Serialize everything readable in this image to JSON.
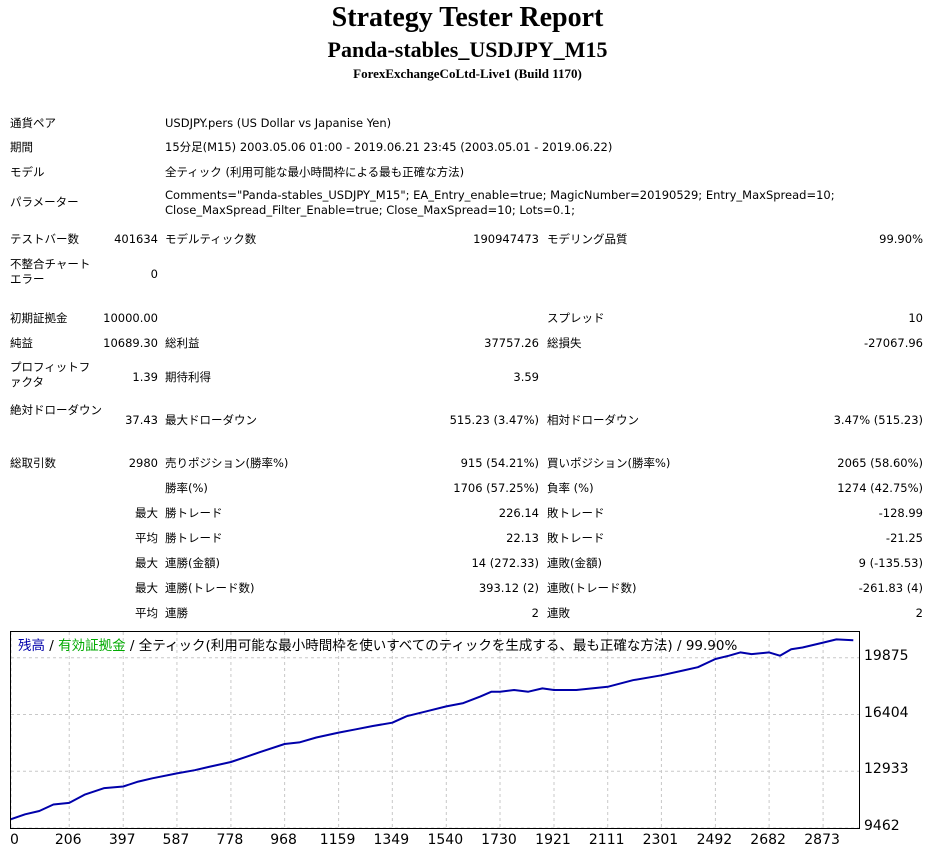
{
  "header": {
    "title": "Strategy Tester Report",
    "subtitle": "Panda-stables_USDJPY_M15",
    "server": "ForexExchangeCoLtd-Live1 (Build 1170)"
  },
  "info": {
    "symbol_label": "通貨ペア",
    "symbol_value": "USDJPY.pers (US Dollar vs Japanise Yen)",
    "period_label": "期間",
    "period_value": "15分足(M15) 2003.05.06 01:00 - 2019.06.21 23:45 (2003.05.01 - 2019.06.22)",
    "model_label": "モデル",
    "model_value": "全ティック (利用可能な最小時間枠による最も正確な方法)",
    "params_label": "パラメーター",
    "params_line1": "Comments=\"Panda-stables_USDJPY_M15\"; EA_Entry_enable=true; MagicNumber=20190529; Entry_MaxSpread=10;",
    "params_line2": "Close_MaxSpread_Filter_Enable=true; Close_MaxSpread=10; Lots=0.1;"
  },
  "stats": {
    "bars_label": "テストバー数",
    "bars_value": "401634",
    "ticks_label": "モデルティック数",
    "ticks_value": "190947473",
    "quality_label": "モデリング品質",
    "quality_value": "99.90%",
    "mismatch_label": "不整合チャートエラー",
    "mismatch_value": "0",
    "deposit_label": "初期証拠金",
    "deposit_value": "10000.00",
    "spread_label": "スプレッド",
    "spread_value": "10",
    "net_label": "純益",
    "net_value": "10689.30",
    "gross_profit_label": "総利益",
    "gross_profit_value": "37757.26",
    "gross_loss_label": "総損失",
    "gross_loss_value": "-27067.96",
    "pf_label": "プロフィットファクタ",
    "pf_value": "1.39",
    "expected_label": "期待利得",
    "expected_value": "3.59",
    "abs_dd_label": "絶対ドローダウン",
    "abs_dd_value": "37.43",
    "max_dd_label": "最大ドローダウン",
    "max_dd_value": "515.23 (3.47%)",
    "rel_dd_label": "相対ドローダウン",
    "rel_dd_value": "3.47% (515.23)",
    "total_trades_label": "総取引数",
    "total_trades_value": "2980",
    "short_label": "売りポジション(勝率%)",
    "short_value": "915 (54.21%)",
    "long_label": "買いポジション(勝率%)",
    "long_value": "2065 (58.60%)",
    "win_rate_label": "勝率(%)",
    "win_rate_value": "1706 (57.25%)",
    "loss_rate_label": "負率 (%)",
    "loss_rate_value": "1274 (42.75%)",
    "max_prefix": "最大",
    "avg_prefix": "平均",
    "largest_win_label": "勝トレード",
    "largest_win_value": "226.14",
    "largest_loss_label": "敗トレード",
    "largest_loss_value": "-128.99",
    "avg_win_label": "勝トレード",
    "avg_win_value": "22.13",
    "avg_loss_label": "敗トレード",
    "avg_loss_value": "-21.25",
    "max_consec_wins_label": "連勝(金額)",
    "max_consec_wins_value": "14 (272.33)",
    "max_consec_losses_label": "連敗(金額)",
    "max_consec_losses_value": "9 (-135.53)",
    "max_consec_profit_label": "連勝(トレード数)",
    "max_consec_profit_value": "393.12 (2)",
    "max_consec_loss_label": "連敗(トレード数)",
    "max_consec_loss_value": "-261.83 (4)",
    "avg_consec_wins_label": "連勝",
    "avg_consec_wins_value": "2",
    "avg_consec_losses_label": "連敗",
    "avg_consec_losses_value": "2"
  },
  "graph": {
    "legend_balance": "残高",
    "legend_sep1": " / ",
    "legend_equity": "有効証拠金",
    "legend_rest": " / 全ティック(利用可能な最小時間枠を使いすべてのティックを生成する、最も正確な方法) / 99.90%",
    "balance_color": "#0000aa",
    "equity_color": "#00aa00"
  },
  "chart_data": {
    "type": "line",
    "title": "",
    "xlabel": "",
    "ylabel": "",
    "x_ticks": [
      0,
      206,
      397,
      587,
      778,
      968,
      1159,
      1349,
      1540,
      1730,
      1921,
      2111,
      2301,
      2492,
      2682,
      2873
    ],
    "y_ticks": [
      9462,
      12933,
      16404,
      19875
    ],
    "xlim": [
      0,
      3000
    ],
    "ylim": [
      9462,
      21450
    ],
    "series": [
      {
        "color": "#0000aa",
        "x": [
          0,
          50,
          100,
          150,
          206,
          260,
          330,
          397,
          450,
          500,
          587,
          650,
          700,
          778,
          830,
          880,
          968,
          1020,
          1080,
          1159,
          1220,
          1280,
          1349,
          1400,
          1470,
          1540,
          1600,
          1660,
          1700,
          1730,
          1780,
          1830,
          1880,
          1921,
          2000,
          2111,
          2200,
          2301,
          2380,
          2430,
          2492,
          2540,
          2580,
          2620,
          2682,
          2720,
          2760,
          2800,
          2873,
          2920,
          2980
        ],
        "y": [
          10000,
          10300,
          10500,
          10900,
          11000,
          11500,
          11900,
          12000,
          12300,
          12500,
          12800,
          13000,
          13200,
          13500,
          13800,
          14100,
          14600,
          14700,
          15000,
          15300,
          15500,
          15700,
          15900,
          16300,
          16600,
          16900,
          17100,
          17500,
          17800,
          17800,
          17900,
          17800,
          18000,
          17900,
          17900,
          18100,
          18500,
          18800,
          19100,
          19300,
          19800,
          20000,
          20200,
          20100,
          20200,
          20000,
          20400,
          20500,
          20800,
          21000,
          20950
        ]
      }
    ]
  }
}
